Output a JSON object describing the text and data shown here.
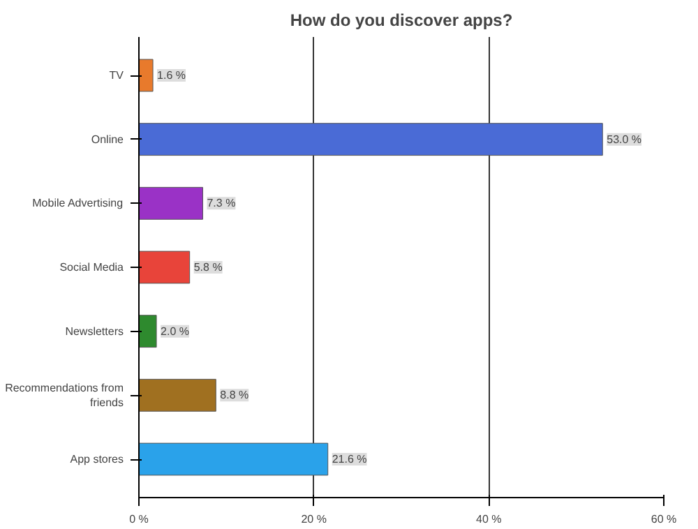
{
  "chart_data": {
    "type": "bar",
    "orientation": "horizontal",
    "title": "How do you discover apps?",
    "categories": [
      "TV",
      "Online",
      "Mobile Advertising",
      "Social Media",
      "Newsletters",
      "Recommendations from friends",
      "App stores"
    ],
    "values": [
      1.6,
      53.0,
      7.3,
      5.8,
      2.0,
      8.8,
      21.6
    ],
    "value_labels": [
      "1.6 %",
      "53.0 %",
      "7.3 %",
      "5.8 %",
      "2.0 %",
      "8.8 %",
      "21.6 %"
    ],
    "colors": [
      "#e87a2c",
      "#4a6bd6",
      "#9a32c6",
      "#e8443a",
      "#2e8a2e",
      "#a07020",
      "#2aa2ea"
    ],
    "xlim": [
      0,
      60
    ],
    "xticks": [
      {
        "value": 0,
        "label": "0 %"
      },
      {
        "value": 20,
        "label": "20 %"
      },
      {
        "value": 40,
        "label": "40 %"
      },
      {
        "value": 60,
        "label": "60 %"
      }
    ],
    "grid": "x"
  }
}
